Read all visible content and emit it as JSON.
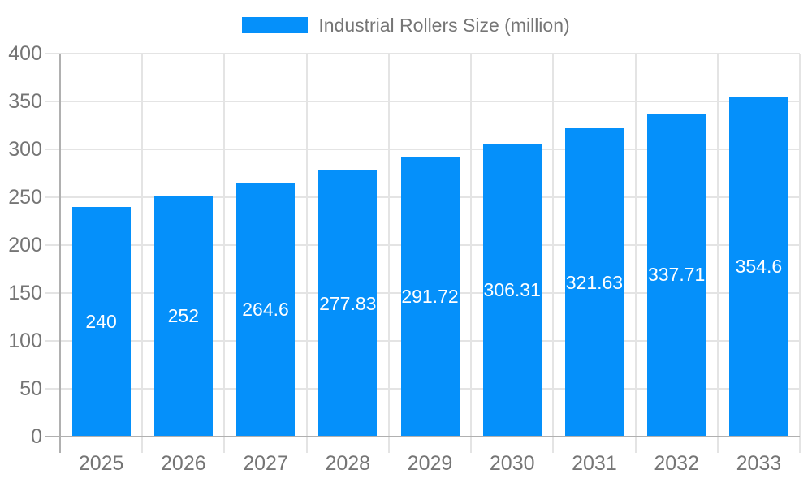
{
  "legend": {
    "items": [
      {
        "label": "Industrial Rollers Size (million)",
        "color": "#0590fa"
      }
    ]
  },
  "chart_data": {
    "type": "bar",
    "title": "Industrial Rollers Size (million)",
    "series_name": "Industrial Rollers Size (million)",
    "categories": [
      "2025",
      "2026",
      "2027",
      "2028",
      "2029",
      "2030",
      "2031",
      "2032",
      "2033"
    ],
    "values": [
      240,
      252,
      264.6,
      277.83,
      291.72,
      306.31,
      321.63,
      337.71,
      354.6
    ],
    "value_labels": [
      "240",
      "252",
      "264.6",
      "277.83",
      "291.72",
      "306.31",
      "321.63",
      "337.71",
      "354.6"
    ],
    "xlabel": "",
    "ylabel": "",
    "ylim": [
      0,
      400
    ],
    "ytick_step": 50,
    "yticks": [
      0,
      50,
      100,
      150,
      200,
      250,
      300,
      350,
      400
    ],
    "grid": true,
    "legend_position": "top",
    "bar_color": "#0590fa",
    "value_label_color": "#ffffff",
    "axis_label_color": "#757575",
    "gridline_color": "#e4e4e4",
    "axis_line_color": "#b0b0b0",
    "background_color": "#ffffff"
  }
}
